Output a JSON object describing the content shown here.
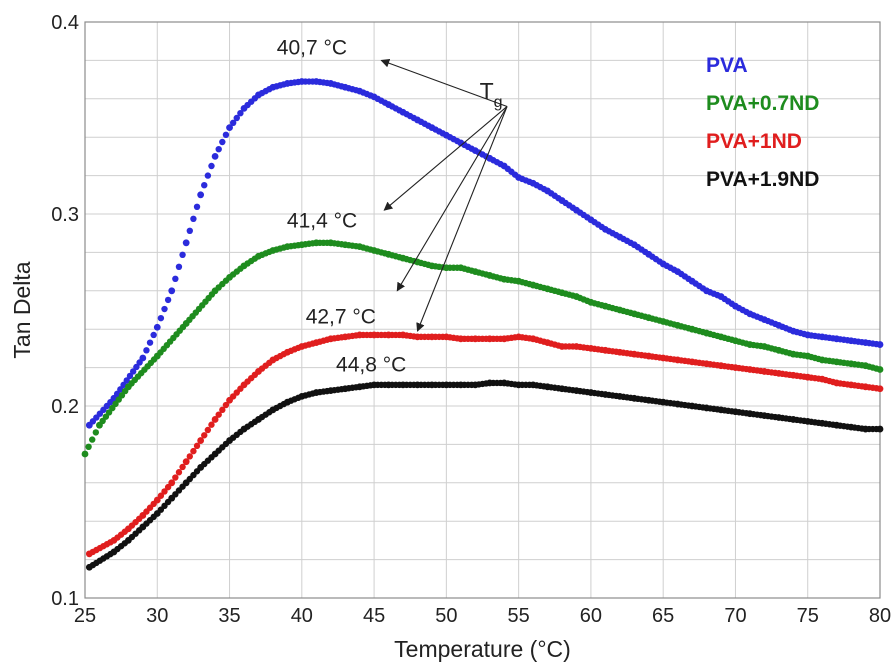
{
  "chart_data": {
    "type": "scatter",
    "xlabel": "Temperature (°C)",
    "ylabel": "Tan Delta",
    "xlim": [
      25,
      80
    ],
    "ylim": [
      0.1,
      0.4
    ],
    "xticks": [
      25,
      30,
      35,
      40,
      45,
      50,
      55,
      60,
      65,
      70,
      75,
      80
    ],
    "yticks": [
      0.1,
      0.2,
      0.3,
      0.4
    ],
    "xtick_labels": [
      "25",
      "30",
      "35",
      "40",
      "45",
      "50",
      "55",
      "60",
      "65",
      "70",
      "75",
      "80"
    ],
    "ytick_labels": [
      "0.1",
      "0.2",
      "0.3",
      "0.4"
    ],
    "grid": true,
    "legend": "top-right",
    "series": [
      {
        "name": "PVA",
        "color": "#2b2bdc",
        "x": [
          25.3,
          27,
          29,
          30,
          31,
          32,
          33,
          34,
          35,
          36,
          37,
          38,
          39,
          40,
          41,
          42,
          43,
          44,
          45,
          46,
          47,
          48,
          49,
          50,
          51,
          52,
          53,
          54,
          55,
          56,
          57,
          58,
          59,
          60,
          61,
          62,
          63,
          64,
          65,
          66,
          67,
          68,
          69,
          70,
          71,
          72,
          73,
          74,
          75,
          76,
          77,
          78,
          79,
          80
        ],
        "y": [
          0.19,
          0.204,
          0.225,
          0.241,
          0.26,
          0.285,
          0.31,
          0.33,
          0.345,
          0.355,
          0.362,
          0.366,
          0.368,
          0.369,
          0.369,
          0.368,
          0.366,
          0.364,
          0.361,
          0.357,
          0.353,
          0.349,
          0.345,
          0.341,
          0.337,
          0.333,
          0.329,
          0.325,
          0.319,
          0.316,
          0.312,
          0.307,
          0.302,
          0.297,
          0.292,
          0.288,
          0.284,
          0.279,
          0.274,
          0.27,
          0.265,
          0.26,
          0.257,
          0.252,
          0.248,
          0.245,
          0.242,
          0.239,
          0.237,
          0.236,
          0.235,
          0.234,
          0.233,
          0.232
        ]
      },
      {
        "name": "PVA+0.7ND",
        "color": "#1e8c1e",
        "x": [
          25,
          26,
          28,
          30,
          32,
          34,
          35,
          36,
          37,
          38,
          39,
          40,
          41,
          42,
          43,
          44,
          45,
          46,
          47,
          48,
          49,
          50,
          51,
          52,
          53,
          54,
          55,
          56,
          57,
          58,
          59,
          60,
          61,
          62,
          63,
          64,
          65,
          66,
          67,
          68,
          69,
          70,
          71,
          72,
          73,
          74,
          75,
          76,
          77,
          78,
          79,
          80
        ],
        "y": [
          0.175,
          0.19,
          0.21,
          0.226,
          0.243,
          0.26,
          0.267,
          0.273,
          0.278,
          0.281,
          0.283,
          0.284,
          0.285,
          0.285,
          0.284,
          0.283,
          0.281,
          0.279,
          0.277,
          0.275,
          0.273,
          0.272,
          0.272,
          0.27,
          0.268,
          0.266,
          0.265,
          0.263,
          0.261,
          0.259,
          0.257,
          0.254,
          0.252,
          0.25,
          0.248,
          0.246,
          0.244,
          0.242,
          0.24,
          0.238,
          0.236,
          0.234,
          0.232,
          0.231,
          0.229,
          0.227,
          0.226,
          0.224,
          0.223,
          0.222,
          0.221,
          0.219
        ]
      },
      {
        "name": "PVA+1ND",
        "color": "#e01e1e",
        "x": [
          25.3,
          27,
          28,
          29,
          30,
          31,
          32,
          33,
          34,
          35,
          36,
          37,
          38,
          39,
          40,
          41,
          42,
          43,
          44,
          45,
          46,
          47,
          48,
          49,
          50,
          51,
          52,
          53,
          54,
          55,
          56,
          57,
          58,
          59,
          60,
          61,
          62,
          63,
          64,
          65,
          66,
          67,
          68,
          69,
          70,
          71,
          72,
          73,
          74,
          75,
          76,
          77,
          78,
          79,
          80
        ],
        "y": [
          0.123,
          0.13,
          0.136,
          0.143,
          0.151,
          0.16,
          0.171,
          0.182,
          0.193,
          0.203,
          0.211,
          0.218,
          0.224,
          0.228,
          0.231,
          0.233,
          0.235,
          0.236,
          0.237,
          0.237,
          0.237,
          0.237,
          0.236,
          0.236,
          0.236,
          0.235,
          0.235,
          0.235,
          0.235,
          0.236,
          0.235,
          0.233,
          0.231,
          0.231,
          0.23,
          0.229,
          0.228,
          0.227,
          0.226,
          0.225,
          0.224,
          0.223,
          0.222,
          0.221,
          0.22,
          0.219,
          0.218,
          0.217,
          0.216,
          0.215,
          0.214,
          0.212,
          0.211,
          0.21,
          0.209
        ]
      },
      {
        "name": "PVA+1.9ND",
        "color": "#111111",
        "x": [
          25.3,
          27,
          28,
          29,
          30,
          31,
          32,
          33,
          34,
          35,
          36,
          37,
          38,
          39,
          40,
          41,
          42,
          43,
          44,
          45,
          46,
          47,
          48,
          49,
          50,
          51,
          52,
          53,
          54,
          55,
          56,
          57,
          58,
          59,
          60,
          61,
          62,
          63,
          64,
          65,
          66,
          67,
          68,
          69,
          70,
          71,
          72,
          73,
          74,
          75,
          76,
          77,
          78,
          79,
          80
        ],
        "y": [
          0.116,
          0.124,
          0.13,
          0.137,
          0.144,
          0.152,
          0.16,
          0.168,
          0.175,
          0.182,
          0.188,
          0.193,
          0.198,
          0.202,
          0.205,
          0.207,
          0.208,
          0.209,
          0.21,
          0.211,
          0.211,
          0.211,
          0.211,
          0.211,
          0.211,
          0.211,
          0.211,
          0.212,
          0.212,
          0.211,
          0.211,
          0.21,
          0.209,
          0.208,
          0.207,
          0.206,
          0.205,
          0.204,
          0.203,
          0.202,
          0.201,
          0.2,
          0.199,
          0.198,
          0.197,
          0.196,
          0.195,
          0.194,
          0.193,
          0.192,
          0.191,
          0.19,
          0.189,
          0.188,
          0.188
        ]
      }
    ],
    "annotations": [
      {
        "text": "40,7 °C",
        "series": "PVA",
        "anchor_x": 40.7,
        "anchor_y": 0.383,
        "arrow_to_x": 45.5,
        "arrow_to_y": 0.38
      },
      {
        "text": "41,4 °C",
        "series": "PVA+0.7ND",
        "anchor_x": 41.4,
        "anchor_y": 0.293,
        "arrow_to_x": 45.7,
        "arrow_to_y": 0.302
      },
      {
        "text": "42,7 °C",
        "series": "PVA+1ND",
        "anchor_x": 42.7,
        "anchor_y": 0.243,
        "arrow_to_x": 46.6,
        "arrow_to_y": 0.26
      },
      {
        "text": "44,8 °C",
        "series": "PVA+1.9ND",
        "anchor_x": 44.8,
        "anchor_y": 0.218,
        "arrow_to_x": 48.0,
        "arrow_to_y": 0.239
      }
    ],
    "tg_label": {
      "main": "T",
      "subscript": "g",
      "x": 52.3,
      "y": 0.36,
      "arrow_origin_x": 54.2,
      "arrow_origin_y": 0.356
    }
  }
}
